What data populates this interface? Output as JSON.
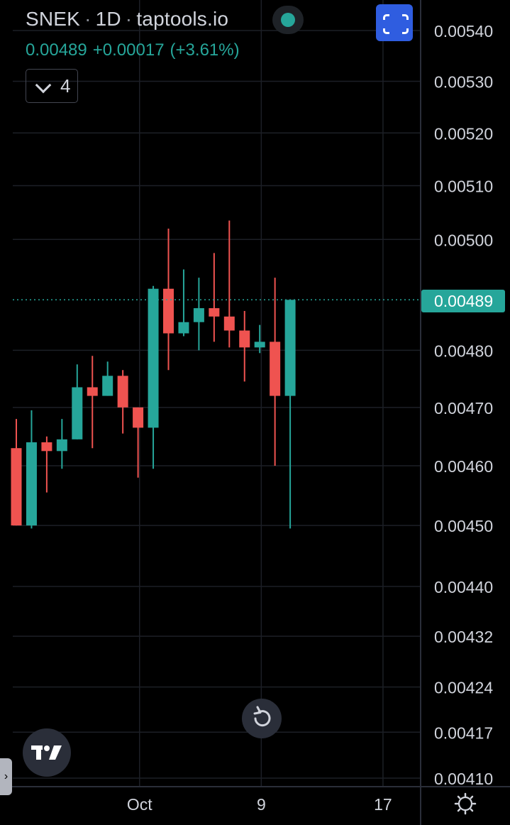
{
  "header": {
    "symbol": "SNEK",
    "interval": "1D",
    "source": "taptools.io",
    "price": "0.00489",
    "change": "+0.00017",
    "change_pct": "(+3.61%)",
    "indicator_count": "4"
  },
  "price_tag": "0.00489",
  "colors": {
    "up": "#26a69a",
    "down": "#ef5350",
    "grid": "#1c1f26",
    "axis_text": "#d1d4dc",
    "accent_blue": "#2f5de0"
  },
  "icons": {
    "live": "live-status-dot",
    "fullscreen": "fullscreen-icon",
    "collapse": "chevron-down-icon",
    "reset": "reset-rotate-icon",
    "logo": "tradingview-logo-icon",
    "side_tab": "chevron-right-icon",
    "settings": "gear-icon"
  },
  "side_tab_glyph": "›",
  "chart_data": {
    "type": "candlestick",
    "scale": "log",
    "grid": true,
    "y_ticks": [
      "0.00540",
      "0.00530",
      "0.00520",
      "0.00510",
      "0.00500",
      "0.00480",
      "0.00470",
      "0.00460",
      "0.00450",
      "0.00440",
      "0.00432",
      "0.00424",
      "0.00417",
      "0.00410"
    ],
    "x_ticks": [
      "Oct",
      "9",
      "17"
    ],
    "last_price": 0.00489,
    "candles": [
      {
        "o": 0.00463,
        "h": 0.00468,
        "l": 0.0045,
        "c": 0.0045
      },
      {
        "o": 0.0045,
        "h": 0.004695,
        "l": 0.004495,
        "c": 0.00464
      },
      {
        "o": 0.00464,
        "h": 0.00465,
        "l": 0.004555,
        "c": 0.004625
      },
      {
        "o": 0.004625,
        "h": 0.00468,
        "l": 0.004595,
        "c": 0.004645
      },
      {
        "o": 0.004645,
        "h": 0.004775,
        "l": 0.004645,
        "c": 0.004735
      },
      {
        "o": 0.004735,
        "h": 0.00479,
        "l": 0.00463,
        "c": 0.00472
      },
      {
        "o": 0.00472,
        "h": 0.00478,
        "l": 0.00472,
        "c": 0.004755
      },
      {
        "o": 0.004755,
        "h": 0.004765,
        "l": 0.004655,
        "c": 0.0047
      },
      {
        "o": 0.0047,
        "h": 0.0047,
        "l": 0.00458,
        "c": 0.004665
      },
      {
        "o": 0.004665,
        "h": 0.004915,
        "l": 0.004595,
        "c": 0.00491
      },
      {
        "o": 0.00491,
        "h": 0.00502,
        "l": 0.004765,
        "c": 0.00483
      },
      {
        "o": 0.00483,
        "h": 0.004945,
        "l": 0.004825,
        "c": 0.00485
      },
      {
        "o": 0.00485,
        "h": 0.00493,
        "l": 0.0048,
        "c": 0.004875
      },
      {
        "o": 0.004875,
        "h": 0.004975,
        "l": 0.004815,
        "c": 0.00486
      },
      {
        "o": 0.00486,
        "h": 0.005035,
        "l": 0.004805,
        "c": 0.004835
      },
      {
        "o": 0.004835,
        "h": 0.00487,
        "l": 0.004745,
        "c": 0.004805
      },
      {
        "o": 0.004805,
        "h": 0.004845,
        "l": 0.004795,
        "c": 0.004815
      },
      {
        "o": 0.004815,
        "h": 0.00493,
        "l": 0.0046,
        "c": 0.00472
      },
      {
        "o": 0.00472,
        "h": 0.00489,
        "l": 0.004495,
        "c": 0.00489
      }
    ]
  }
}
